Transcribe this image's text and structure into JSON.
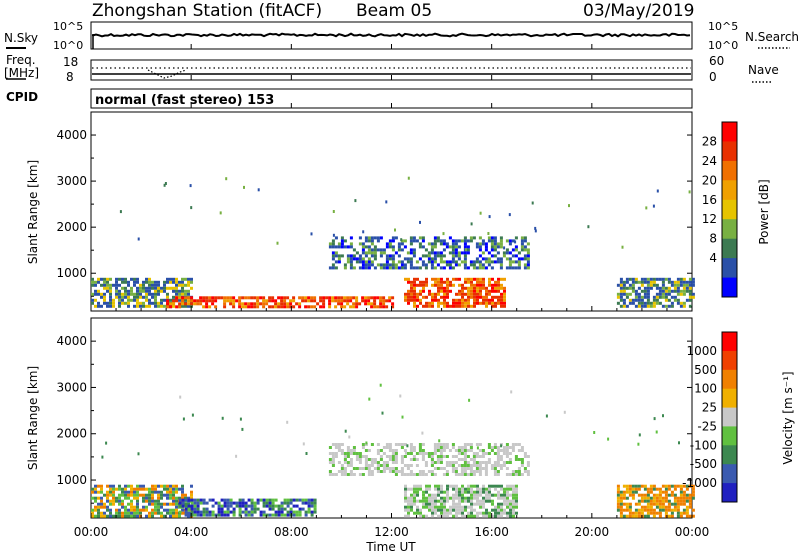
{
  "header": {
    "station": "Zhongshan Station (fitACF)",
    "beam": "Beam 05",
    "date": "03/May/2019"
  },
  "status_panels": {
    "nsky_label": "N.Sky",
    "nsky_ticks": [
      "10^5",
      "10^0"
    ],
    "nsearch_label": "N.Search",
    "nsearch_ticks": [
      "10^5",
      "10^0"
    ],
    "freq_label_1": "Freq.",
    "freq_label_2": "[MHz]",
    "freq_ticks": [
      "18",
      "8"
    ],
    "nave_label": "Nave",
    "nave_ticks": [
      "60",
      "0"
    ],
    "cpid_label": "CPID",
    "cpid_text": "normal (fast stereo) 153"
  },
  "chart_data": [
    {
      "type": "heatmap",
      "title": "Power",
      "ylabel": "Slant Range [km]",
      "ylim": [
        180,
        4500
      ],
      "yticks": [
        "1000",
        "2000",
        "3000",
        "4000"
      ],
      "colorbar_label": "Power [dB]",
      "colorbar_ticks": [
        "4",
        "8",
        "12",
        "16",
        "20",
        "24",
        "28"
      ],
      "colorbar_colors": [
        "#0000ff",
        "#2a50a8",
        "#3c7a52",
        "#78b042",
        "#e6c400",
        "#f0a000",
        "#f07000",
        "#e83000",
        "#ff0000"
      ],
      "regions": [
        {
          "t": [
            0.0,
            4.0
          ],
          "r": [
            250,
            900
          ],
          "level": "low-mid"
        },
        {
          "t": [
            3.0,
            12.0
          ],
          "r": [
            250,
            500
          ],
          "level": "high"
        },
        {
          "t": [
            9.5,
            17.5
          ],
          "r": [
            1100,
            1800
          ],
          "level": "low"
        },
        {
          "t": [
            12.5,
            16.5
          ],
          "r": [
            250,
            900
          ],
          "level": "high"
        },
        {
          "t": [
            21.0,
            24.0
          ],
          "r": [
            250,
            900
          ],
          "level": "low-mid"
        }
      ]
    },
    {
      "type": "heatmap",
      "title": "Velocity",
      "xlabel": "Time UT",
      "xticks": [
        "00:00",
        "04:00",
        "08:00",
        "12:00",
        "16:00",
        "20:00",
        "00:00"
      ],
      "ylabel": "Slant Range [km]",
      "ylim": [
        180,
        4500
      ],
      "yticks": [
        "1000",
        "2000",
        "3000",
        "4000"
      ],
      "colorbar_label": "Velocity [m s⁻¹]",
      "colorbar_ticks": [
        "1000",
        "500",
        "100",
        "25",
        "-25",
        "-100",
        "-500",
        "-1000"
      ],
      "colorbar_colors": [
        "#2020c0",
        "#3a5ab0",
        "#3c8850",
        "#60c040",
        "#c8c8c8",
        "#f0b000",
        "#f08000",
        "#f04000",
        "#ff0000"
      ],
      "regions": [
        {
          "t": [
            0.0,
            4.0
          ],
          "r": [
            250,
            900
          ],
          "level": "mixed"
        },
        {
          "t": [
            3.5,
            9.0
          ],
          "r": [
            250,
            600
          ],
          "level": "positive-fast"
        },
        {
          "t": [
            9.5,
            17.5
          ],
          "r": [
            1100,
            1800
          ],
          "level": "near-zero"
        },
        {
          "t": [
            12.5,
            17.0
          ],
          "r": [
            250,
            900
          ],
          "level": "near-zero-slow"
        },
        {
          "t": [
            21.0,
            24.0
          ],
          "r": [
            250,
            900
          ],
          "level": "negative"
        }
      ]
    }
  ]
}
